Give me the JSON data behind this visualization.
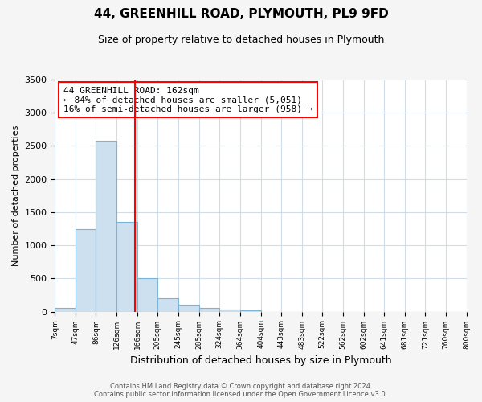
{
  "title": "44, GREENHILL ROAD, PLYMOUTH, PL9 9FD",
  "subtitle": "Size of property relative to detached houses in Plymouth",
  "xlabel": "Distribution of detached houses by size in Plymouth",
  "ylabel": "Number of detached properties",
  "bar_edges": [
    7,
    47,
    86,
    126,
    166,
    205,
    245,
    285,
    324,
    364,
    404,
    443,
    483,
    522,
    562,
    602,
    641,
    681,
    721,
    760,
    800
  ],
  "bar_heights": [
    50,
    1240,
    2580,
    1350,
    500,
    200,
    100,
    50,
    30,
    20,
    0,
    0,
    0,
    0,
    0,
    0,
    0,
    0,
    0,
    0
  ],
  "bar_color": "#cce0f0",
  "bar_edge_color": "#7ab5d8",
  "property_line_x": 162,
  "property_line_color": "red",
  "annotation_title": "44 GREENHILL ROAD: 162sqm",
  "annotation_line1": "← 84% of detached houses are smaller (5,051)",
  "annotation_line2": "16% of semi-detached houses are larger (958) →",
  "annotation_box_color": "white",
  "annotation_box_edge_color": "red",
  "ylim": [
    0,
    3500
  ],
  "yticks": [
    0,
    500,
    1000,
    1500,
    2000,
    2500,
    3000,
    3500
  ],
  "xtick_labels": [
    "7sqm",
    "47sqm",
    "86sqm",
    "126sqm",
    "166sqm",
    "205sqm",
    "245sqm",
    "285sqm",
    "324sqm",
    "364sqm",
    "404sqm",
    "443sqm",
    "483sqm",
    "522sqm",
    "562sqm",
    "602sqm",
    "641sqm",
    "681sqm",
    "721sqm",
    "760sqm",
    "800sqm"
  ],
  "footer_line1": "Contains HM Land Registry data © Crown copyright and database right 2024.",
  "footer_line2": "Contains public sector information licensed under the Open Government Licence v3.0.",
  "bg_color": "#f5f5f5",
  "plot_bg_color": "#ffffff",
  "grid_color": "#d0dce8",
  "title_fontsize": 11,
  "subtitle_fontsize": 9,
  "ylabel_fontsize": 8,
  "xlabel_fontsize": 9
}
